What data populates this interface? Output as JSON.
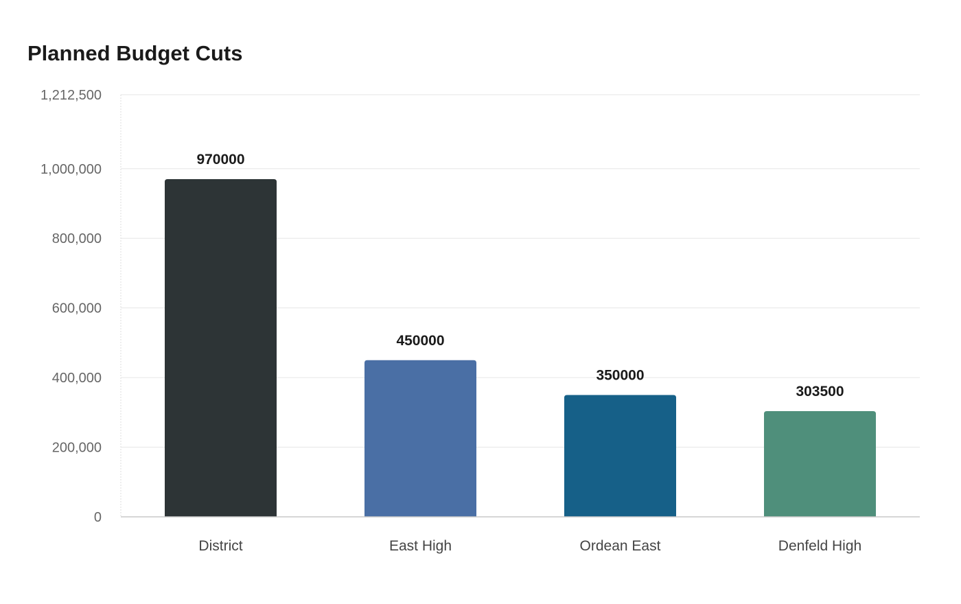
{
  "chart_data": {
    "type": "bar",
    "title": "Planned Budget Cuts",
    "xlabel": "",
    "ylabel": "",
    "categories": [
      "District",
      "East High",
      "Ordean East",
      "Denfeld High"
    ],
    "values": [
      970000,
      450000,
      350000,
      303500
    ],
    "data_labels": [
      "970000",
      "450000",
      "350000",
      "303500"
    ],
    "bar_colors": [
      "#2d3436",
      "#4a6fa5",
      "#166088",
      "#4f8f7b"
    ],
    "ylim": [
      0,
      1212500
    ],
    "y_ticks": [
      0,
      200000,
      400000,
      600000,
      800000,
      1000000,
      1212500
    ],
    "y_tick_labels": [
      "0",
      "200,000",
      "400,000",
      "600,000",
      "800,000",
      "1,000,000",
      "1,212,500"
    ],
    "grid": true,
    "legend": "none"
  }
}
